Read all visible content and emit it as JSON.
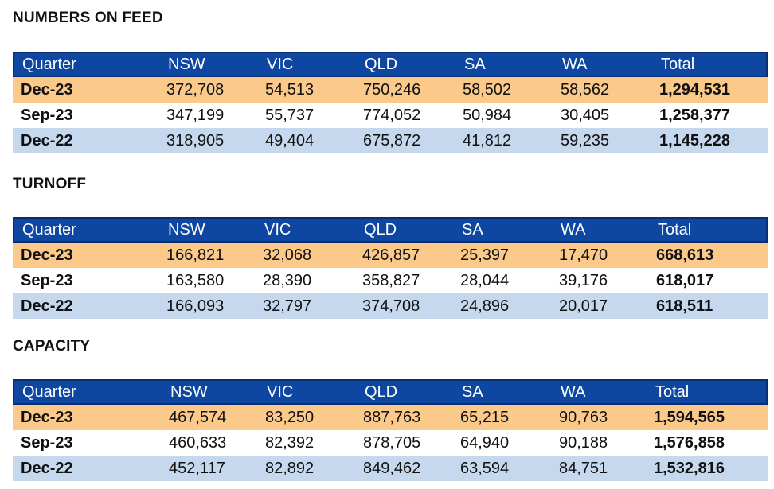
{
  "columns": [
    "Quarter",
    "NSW",
    "VIC",
    "QLD",
    "SA",
    "WA",
    "Total"
  ],
  "sections": [
    {
      "title": "NUMBERS ON FEED",
      "rows": [
        {
          "quarter": "Dec-23",
          "nsw": "372,708",
          "vic": "54,513",
          "qld": "750,246",
          "sa": "58,502",
          "wa": "58,562",
          "total": "1,294,531"
        },
        {
          "quarter": "Sep-23",
          "nsw": "347,199",
          "vic": "55,737",
          "qld": "774,052",
          "sa": "50,984",
          "wa": "30,405",
          "total": "1,258,377"
        },
        {
          "quarter": "Dec-22",
          "nsw": "318,905",
          "vic": "49,404",
          "qld": "675,872",
          "sa": "41,812",
          "wa": "59,235",
          "total": "1,145,228"
        }
      ]
    },
    {
      "title": "TURNOFF",
      "rows": [
        {
          "quarter": "Dec-23",
          "nsw": "166,821",
          "vic": "32,068",
          "qld": "426,857",
          "sa": "25,397",
          "wa": "17,470",
          "total": "668,613"
        },
        {
          "quarter": "Sep-23",
          "nsw": "163,580",
          "vic": "28,390",
          "qld": "358,827",
          "sa": "28,044",
          "wa": "39,176",
          "total": "618,017"
        },
        {
          "quarter": "Dec-22",
          "nsw": "166,093",
          "vic": "32,797",
          "qld": "374,708",
          "sa": "24,896",
          "wa": "20,017",
          "total": "618,511"
        }
      ]
    },
    {
      "title": "CAPACITY",
      "rows": [
        {
          "quarter": "Dec-23",
          "nsw": "467,574",
          "vic": "83,250",
          "qld": "887,763",
          "sa": "65,215",
          "wa": "90,763",
          "total": "1,594,565"
        },
        {
          "quarter": "Sep-23",
          "nsw": "460,633",
          "vic": "82,392",
          "qld": "878,705",
          "sa": "64,940",
          "wa": "90,188",
          "total": "1,576,858"
        },
        {
          "quarter": "Dec-22",
          "nsw": "452,117",
          "vic": "82,892",
          "qld": "849,462",
          "sa": "63,594",
          "wa": "84,751",
          "total": "1,532,816"
        }
      ]
    }
  ],
  "colors": {
    "header": "#0d47a1",
    "dec23_row": "#fbc98a",
    "dec22_row": "#c6d8ee"
  }
}
